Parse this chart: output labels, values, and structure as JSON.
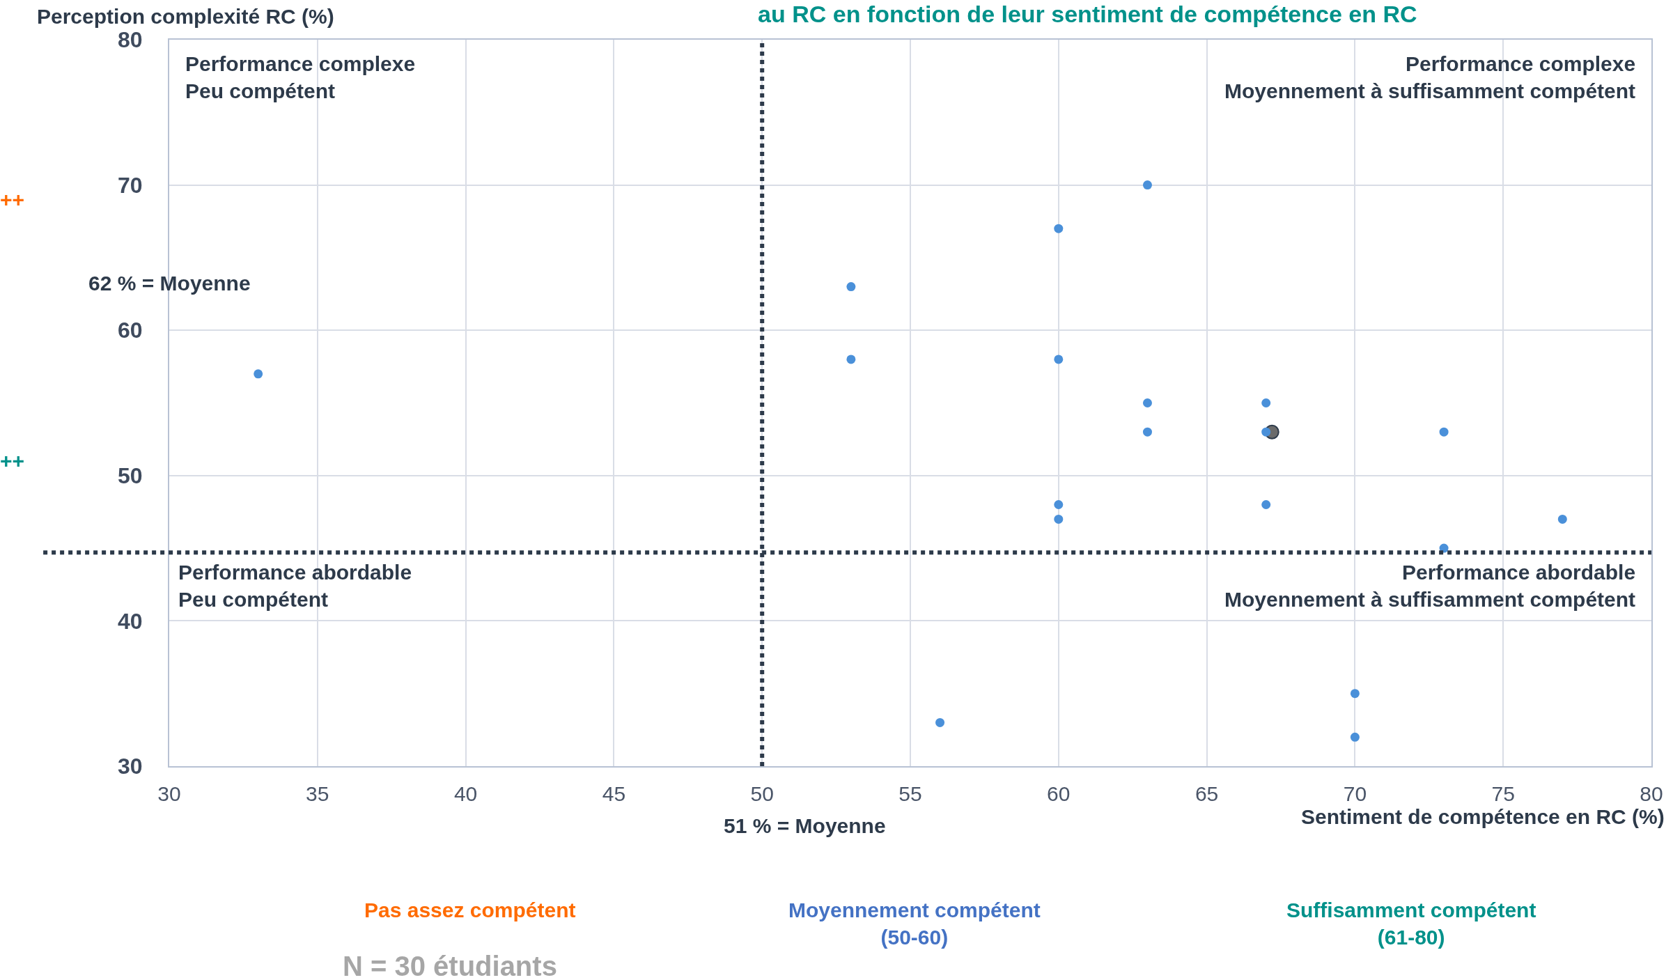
{
  "chart_data": {
    "type": "scatter",
    "title": "au RC en fonction de leur sentiment de compétence en RC",
    "xlabel": "Sentiment de compétence en RC (%)",
    "ylabel": "Perception complexité RC (%)",
    "series": [
      {
        "color": "#4a90d9",
        "x": [
          33,
          53,
          53,
          56,
          60,
          60,
          60,
          60,
          63,
          63,
          63,
          67,
          67,
          67,
          70,
          70,
          73,
          73,
          77
        ],
        "values": [
          57,
          63,
          58,
          33,
          67,
          58,
          48,
          47,
          70,
          55,
          53,
          55,
          53,
          48,
          35,
          32,
          53,
          45,
          47
        ]
      },
      {
        "color": "#6b6b6b",
        "x": [
          67.2
        ],
        "values": [
          53
        ]
      }
    ],
    "marker": "circle",
    "xlim": [
      30,
      80
    ],
    "xticks": [
      30,
      35,
      40,
      45,
      50,
      55,
      60,
      65,
      70,
      75,
      80
    ],
    "ylim": [
      30,
      80
    ],
    "yticks": [
      30,
      40,
      50,
      60,
      70,
      80
    ],
    "grid": true,
    "ref_lines": [
      {
        "axis": "x",
        "value": 50,
        "color": "#2d3a4a",
        "line_style": "dotted"
      },
      {
        "axis": "y",
        "value": 44.7,
        "color": "#2d3a4a",
        "line_style": "dotted"
      }
    ],
    "annotations": [
      "Performance complexe\nPeu compétent",
      "Performance complexe\nMoyennement à suffisamment compétent",
      "Performance abordable\nPeu compétent",
      "Performance abordable\nMoyennement à suffisamment compétent",
      "62 % = Moyenne",
      "51 % = Moyenne",
      "Pas assez compétent",
      "Moyennement compétent\n(50-60)",
      "Suffisamment compétent\n(61-80)",
      "++",
      "++",
      "N = 30 étudiants"
    ]
  }
}
